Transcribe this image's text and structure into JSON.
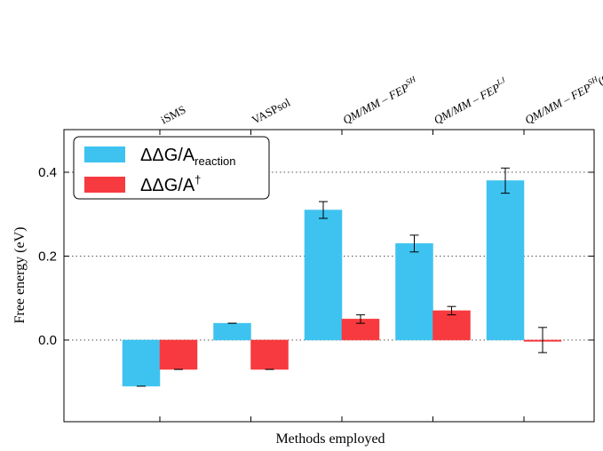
{
  "chart_data": {
    "type": "bar",
    "title": "",
    "xlabel": "Methods employed",
    "ylabel": "Free energy (eV)",
    "ylim": [
      -0.2,
      0.5
    ],
    "yticks": [
      "0.0",
      "0.2",
      "0.4"
    ],
    "ytick_values": [
      0.0,
      0.2,
      0.4
    ],
    "grid": "horizontal dotted",
    "legend_position": "top-left",
    "category_labels_position": "top, rotated",
    "categories": [
      {
        "main": "iSMS",
        "sup": "",
        "suffix": "",
        "style": "roman"
      },
      {
        "main": "VASPsol",
        "sup": "",
        "suffix": "",
        "style": "roman"
      },
      {
        "main": "QM/MM – FEP",
        "sup": "SH",
        "suffix": "",
        "style": "math"
      },
      {
        "main": "QM/MM – FEP",
        "sup": "LJ",
        "suffix": "",
        "style": "math"
      },
      {
        "main": "QM/MM – FEP",
        "sup": "SH",
        "suffix": "(OPT)",
        "style": "math"
      }
    ],
    "series": [
      {
        "legend": {
          "prefix": "ΔΔG/A",
          "sub": "reaction",
          "sup": ""
        },
        "color": "#3ec3f0",
        "values": [
          -0.11,
          0.04,
          0.31,
          0.23,
          0.38
        ],
        "errors": [
          0.0,
          0.0,
          0.02,
          0.02,
          0.03
        ]
      },
      {
        "legend": {
          "prefix": "ΔΔG/A",
          "sub": "",
          "sup": "†"
        },
        "color": "#f73a3f",
        "values": [
          -0.07,
          -0.07,
          0.05,
          0.07,
          0.0
        ],
        "errors": [
          0.0,
          0.0,
          0.01,
          0.01,
          0.03
        ]
      }
    ]
  }
}
